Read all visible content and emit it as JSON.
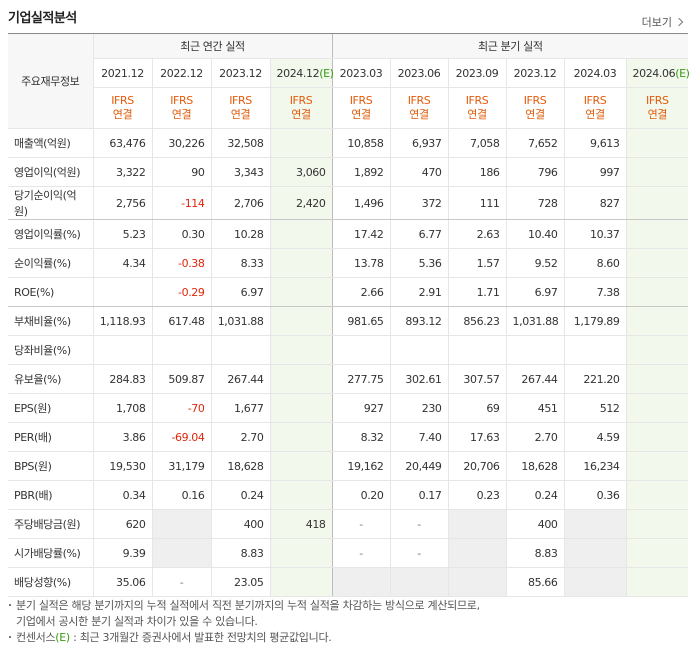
{
  "header": {
    "title": "기업실적분석",
    "more": "더보기"
  },
  "table": {
    "corner": "주요재무정보",
    "groups": [
      "최근 연간 실적",
      "최근 분기 실적"
    ],
    "columns": [
      {
        "date": "2021.12"
      },
      {
        "date": "2022.12"
      },
      {
        "date": "2023.12"
      },
      {
        "date": "2024.12",
        "estimate": "(E)"
      },
      {
        "date": "2023.03"
      },
      {
        "date": "2023.06"
      },
      {
        "date": "2023.09"
      },
      {
        "date": "2023.12"
      },
      {
        "date": "2024.03"
      },
      {
        "date": "2024.06",
        "estimate": "(E)"
      }
    ],
    "basis": [
      "IFRS",
      "연결"
    ],
    "rows": [
      {
        "label": "매출액(억원)",
        "values": [
          "63,476",
          "30,226",
          "32,508",
          null,
          "10,858",
          "6,937",
          "7,058",
          "7,652",
          "9,613",
          null
        ]
      },
      {
        "label": "영업이익(억원)",
        "values": [
          "3,322",
          "90",
          "3,343",
          "3,060",
          "1,892",
          "470",
          "186",
          "796",
          "997",
          null
        ]
      },
      {
        "label": "당기순이익(억원)",
        "values": [
          "2,756",
          "-114",
          "2,706",
          "2,420",
          "1,496",
          "372",
          "111",
          "728",
          "827",
          null
        ]
      },
      {
        "label": "영업이익률(%)",
        "values": [
          "5.23",
          "0.30",
          "10.28",
          null,
          "17.42",
          "6.77",
          "2.63",
          "10.40",
          "10.37",
          null
        ]
      },
      {
        "label": "순이익률(%)",
        "values": [
          "4.34",
          "-0.38",
          "8.33",
          null,
          "13.78",
          "5.36",
          "1.57",
          "9.52",
          "8.60",
          null
        ]
      },
      {
        "label": "ROE(%)",
        "values": [
          null,
          "-0.29",
          "6.97",
          null,
          "2.66",
          "2.91",
          "1.71",
          "6.97",
          "7.38",
          null
        ]
      },
      {
        "label": "부채비율(%)",
        "values": [
          "1,118.93",
          "617.48",
          "1,031.88",
          null,
          "981.65",
          "893.12",
          "856.23",
          "1,031.88",
          "1,179.89",
          null
        ]
      },
      {
        "label": "당좌비율(%)",
        "values": [
          null,
          null,
          null,
          null,
          null,
          null,
          null,
          null,
          null,
          null
        ]
      },
      {
        "label": "유보율(%)",
        "values": [
          "284.83",
          "509.87",
          "267.44",
          null,
          "277.75",
          "302.61",
          "307.57",
          "267.44",
          "221.20",
          null
        ]
      },
      {
        "label": "EPS(원)",
        "values": [
          "1,708",
          "-70",
          "1,677",
          null,
          "927",
          "230",
          "69",
          "451",
          "512",
          null
        ]
      },
      {
        "label": "PER(배)",
        "values": [
          "3.86",
          "-69.04",
          "2.70",
          null,
          "8.32",
          "7.40",
          "17.63",
          "2.70",
          "4.59",
          null
        ]
      },
      {
        "label": "BPS(원)",
        "values": [
          "19,530",
          "31,179",
          "18,628",
          null,
          "19,162",
          "20,449",
          "20,706",
          "18,628",
          "16,234",
          null
        ]
      },
      {
        "label": "PBR(배)",
        "values": [
          "0.34",
          "0.16",
          "0.24",
          null,
          "0.20",
          "0.17",
          "0.23",
          "0.24",
          "0.36",
          null
        ]
      },
      {
        "label": "주당배당금(원)",
        "values": [
          "620",
          null,
          "400",
          "418",
          "-",
          "-",
          null,
          "400",
          null,
          null
        ]
      },
      {
        "label": "시가배당률(%)",
        "values": [
          "9.39",
          null,
          "8.83",
          null,
          "-",
          "-",
          null,
          "8.83",
          null,
          null
        ]
      },
      {
        "label": "배당성향(%)",
        "values": [
          "35.06",
          "-",
          "23.05",
          null,
          null,
          null,
          null,
          "85.66",
          null,
          null
        ]
      }
    ]
  },
  "notes": [
    {
      "lines": [
        "분기 실적은 해당 분기까지의 누적 실적에서 직전 분기까지의 누적 실적을 차감하는 방식으로 계산되므로,",
        "기업에서 공시한 분기 실적과 차이가 있을 수 있습니다."
      ]
    },
    {
      "before": "컨센서스",
      "mark": "(E)",
      "after": " : 최근 3개월간 증권사에서 발표한 전망치의 평균값입니다."
    }
  ]
}
